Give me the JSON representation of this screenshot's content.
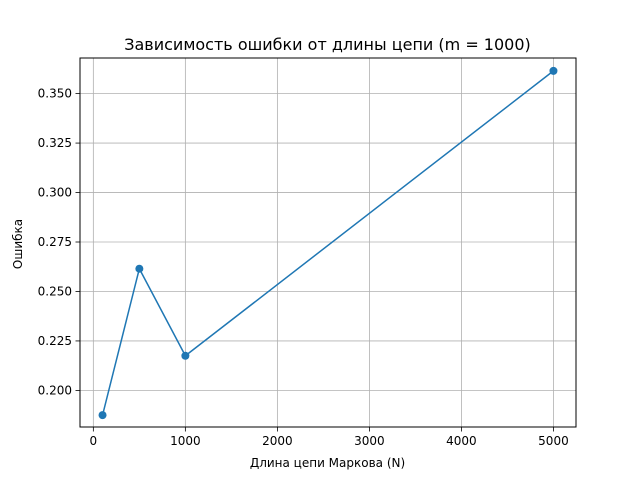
{
  "chart_data": {
    "type": "line",
    "title": "Зависимость ошибки от длины цепи (m = 1000)",
    "xlabel": "Длина цепи Маркова (N)",
    "ylabel": "Ошибка",
    "xlim": [
      -145,
      5245
    ],
    "ylim": [
      0.1815,
      0.368
    ],
    "xticks": [
      0,
      1000,
      2000,
      3000,
      4000,
      5000
    ],
    "xtick_labels": [
      "0",
      "1000",
      "2000",
      "3000",
      "4000",
      "5000"
    ],
    "yticks": [
      0.2,
      0.225,
      0.25,
      0.275,
      0.3,
      0.325,
      0.35
    ],
    "ytick_labels": [
      "0.200",
      "0.225",
      "0.250",
      "0.275",
      "0.300",
      "0.325",
      "0.350"
    ],
    "grid": true,
    "series": [
      {
        "color": "#1f77b4",
        "marker": "circle",
        "points": [
          {
            "x": 100,
            "y": 0.1875
          },
          {
            "x": 500,
            "y": 0.2615
          },
          {
            "x": 1000,
            "y": 0.2175
          },
          {
            "x": 5000,
            "y": 0.3615
          }
        ]
      }
    ]
  }
}
